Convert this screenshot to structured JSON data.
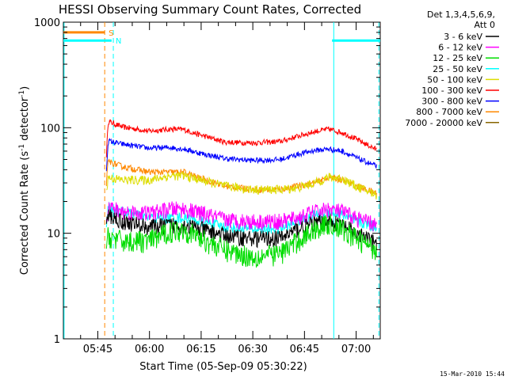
{
  "window": {
    "stamp": "15-Mar-2010 15:44"
  },
  "chart_data": {
    "type": "line",
    "title": "HESSI Observing Summary Count Rates, Corrected",
    "xlabel": "Start Time (05-Sep-09 05:30:22)",
    "ylabel_main": "Corrected Count Rate (s",
    "ylabel_sup1": "-1",
    "ylabel_mid": " detector",
    "ylabel_sup2": "-1",
    "ylabel_end": ")",
    "yscale": "log",
    "ylim": [
      1,
      1000
    ],
    "xlim_min": [
      35,
      127
    ],
    "y_ticks": [
      "1",
      "10",
      "100",
      "1000"
    ],
    "x_ticks": [
      {
        "label": "05:45",
        "min": 45
      },
      {
        "label": "06:00",
        "min": 60
      },
      {
        "label": "06:15",
        "min": 75
      },
      {
        "label": "06:30",
        "min": 90
      },
      {
        "label": "06:45",
        "min": 105
      },
      {
        "label": "07:00",
        "min": 120
      }
    ],
    "legend": {
      "header": [
        "Det 1,3,4,5,6,9,",
        "Att 0"
      ],
      "entries": [
        {
          "label": "3 - 6 keV",
          "color": "#000000"
        },
        {
          "label": "6 - 12 keV",
          "color": "#ff00ff"
        },
        {
          "label": "12 - 25 keV",
          "color": "#00dd00"
        },
        {
          "label": "25 - 50 keV",
          "color": "#00ffff"
        },
        {
          "label": "50 - 100 keV",
          "color": "#dddd00"
        },
        {
          "label": "100 - 300 keV",
          "color": "#ff0000"
        },
        {
          "label": "300 - 800 keV",
          "color": "#0000ff"
        },
        {
          "label": "800 - 7000 keV",
          "color": "#ff8800"
        },
        {
          "label": "7000 - 20000 keV",
          "color": "#886600"
        }
      ]
    },
    "flags": [
      {
        "label": "S",
        "color": "#ff8800",
        "x_min": [
          35,
          47
        ],
        "y": 800
      },
      {
        "label": "N",
        "color": "#00ffff",
        "x_min": [
          35,
          49
        ],
        "y": 670
      },
      {
        "label": "",
        "color": "#00ffff",
        "x_min": [
          113,
          127
        ],
        "y": 670
      }
    ],
    "vlines": [
      {
        "x": 35.2,
        "color": "#00ffff",
        "style": "solid"
      },
      {
        "x": 47,
        "color": "#ff8800",
        "style": "dashed"
      },
      {
        "x": 49.5,
        "color": "#00ffff",
        "style": "dashed"
      },
      {
        "x": 113.5,
        "color": "#00ffff",
        "style": "solid"
      },
      {
        "x": 126.6,
        "color": "#00ffff",
        "style": "dashed"
      }
    ],
    "x_knots": [
      47.5,
      48,
      52,
      60,
      66,
      70,
      75,
      82,
      90,
      98,
      103,
      108,
      112,
      116,
      120,
      126
    ],
    "series": [
      {
        "name": "100 - 300 keV",
        "color": "#ff0000",
        "noise": 0.03,
        "values": [
          55,
          115,
          102,
          93,
          97,
          96,
          85,
          73,
          72,
          74,
          83,
          92,
          97,
          90,
          78,
          62
        ]
      },
      {
        "name": "300 - 800 keV",
        "color": "#0000ff",
        "noise": 0.03,
        "values": [
          40,
          75,
          70,
          64,
          65,
          63,
          57,
          51,
          49,
          50,
          56,
          61,
          63,
          60,
          52,
          43
        ]
      },
      {
        "name": "800 - 7000 keV",
        "color": "#ff8800",
        "noise": 0.035,
        "values": [
          30,
          48,
          43,
          38,
          38,
          38,
          33,
          28,
          26,
          26,
          28,
          30,
          34,
          32,
          28,
          24
        ]
      },
      {
        "name": "50 - 100 keV",
        "color": "#dddd00",
        "noise": 0.05,
        "values": [
          25,
          34,
          32,
          32,
          35,
          35,
          32,
          28,
          26,
          26,
          27,
          30,
          34,
          33,
          28,
          23
        ]
      },
      {
        "name": "25 - 50 keV",
        "color": "#00ffff",
        "noise": 0.06,
        "values": [
          12,
          18,
          16,
          14,
          14,
          14,
          13,
          11.5,
          11,
          11,
          13,
          15,
          16,
          15,
          13,
          11.5
        ]
      },
      {
        "name": "6 - 12 keV",
        "color": "#ff00ff",
        "noise": 0.09,
        "values": [
          14,
          18,
          16,
          15.5,
          17,
          17,
          15.5,
          13.5,
          13,
          13,
          14,
          16,
          17,
          16,
          14,
          12
        ]
      },
      {
        "name": "3 - 6 keV",
        "color": "#000000",
        "noise": 0.09,
        "values": [
          11,
          15,
          13,
          11.5,
          12,
          12,
          11,
          9.5,
          9,
          9,
          11,
          12.5,
          13,
          12,
          10,
          8
        ]
      },
      {
        "name": "12 - 25 keV",
        "color": "#00dd00",
        "noise": 0.12,
        "values": [
          7,
          9.5,
          8.5,
          8.5,
          10.5,
          11,
          9,
          7,
          6,
          6.5,
          8.5,
          11,
          12.5,
          11,
          9,
          7
        ]
      }
    ]
  }
}
